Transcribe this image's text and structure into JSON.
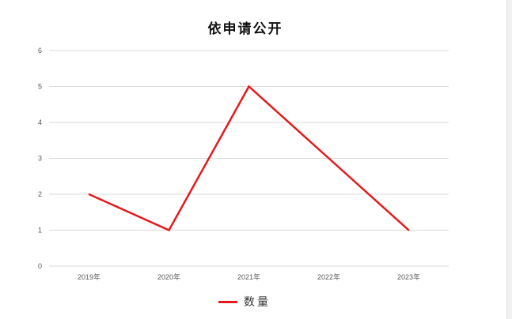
{
  "chart_data": {
    "type": "line",
    "title": "依申请公开",
    "categories": [
      "2019年",
      "2020年",
      "2021年",
      "2022年",
      "2023年"
    ],
    "series": [
      {
        "name": "数量",
        "values": [
          2,
          1,
          5,
          3,
          1
        ],
        "color": "#e41a1c"
      }
    ],
    "ylim": [
      0,
      6
    ],
    "yticks": [
      "0",
      "1",
      "2",
      "3",
      "4",
      "5",
      "6"
    ],
    "xlabel": "",
    "ylabel": "",
    "grid": true,
    "legend": "bottom"
  }
}
